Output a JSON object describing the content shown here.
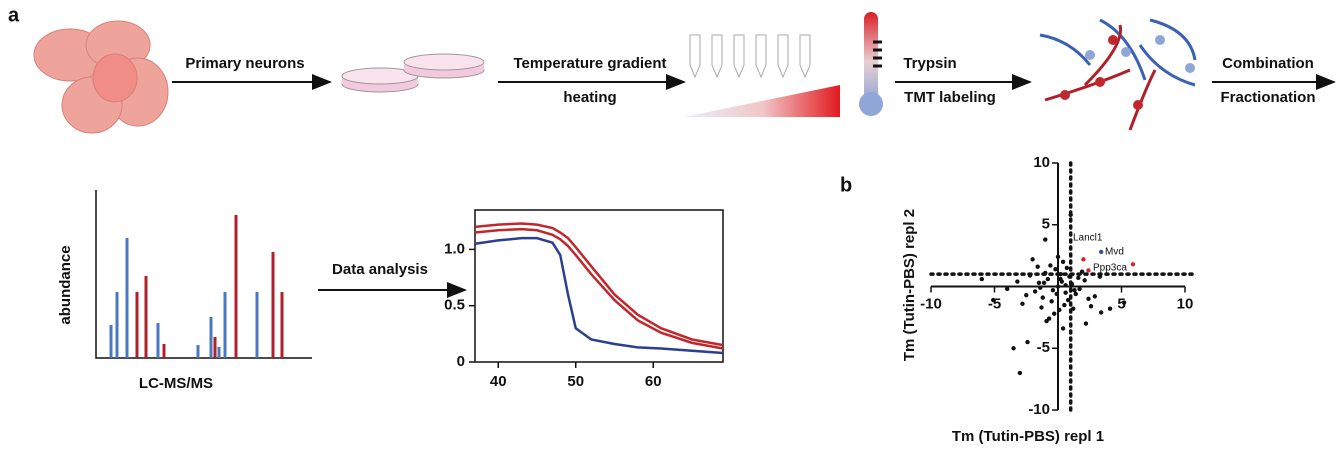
{
  "panels": [
    "a",
    "b"
  ],
  "steps": [
    "Primary neurons",
    "Temperature gradient",
    "heating",
    "Trypsin",
    "TMT labeling",
    "Combination",
    "Fractionation",
    "Data analysis"
  ],
  "spectrum": {
    "y_label": "abundance",
    "x_label": "LC-MS/MS"
  },
  "chart_data": [
    {
      "type": "line",
      "x": [
        37,
        40,
        43,
        45,
        47,
        48,
        49,
        50,
        52,
        55,
        58,
        61,
        65,
        69
      ],
      "series": [
        {
          "color": "#2b3f8f",
          "values": [
            1.05,
            1.08,
            1.1,
            1.1,
            1.06,
            0.95,
            0.6,
            0.3,
            0.2,
            0.16,
            0.13,
            0.12,
            0.1,
            0.08
          ]
        },
        {
          "color": "#c0282d",
          "values": [
            1.2,
            1.22,
            1.23,
            1.22,
            1.19,
            1.15,
            1.1,
            1.02,
            0.85,
            0.6,
            0.42,
            0.3,
            0.2,
            0.15
          ]
        },
        {
          "color": "#c0282d",
          "values": [
            1.15,
            1.17,
            1.18,
            1.17,
            1.13,
            1.09,
            1.03,
            0.95,
            0.78,
            0.55,
            0.37,
            0.26,
            0.17,
            0.12
          ]
        }
      ],
      "xlim": [
        37,
        69
      ],
      "ylim": [
        0,
        1.35
      ],
      "xticks": [
        40,
        50,
        60
      ],
      "yticks": [
        0,
        0.5,
        {
          "value": 1,
          "label": "1.0"
        }
      ]
    },
    {
      "type": "scatter",
      "x_label": "Tm (Tutin-PBS) repl 1",
      "y_label": "Tm (Tutin-PBS) repl 2",
      "xlim": [
        -10,
        10
      ],
      "ylim": [
        -10,
        10
      ],
      "xticks": [
        -10,
        -5,
        5,
        10
      ],
      "yticks": [
        -10,
        -5,
        5,
        10
      ],
      "threshold_lines": {
        "x": 1,
        "y": 1
      },
      "series": [
        {
          "color": "#111111",
          "x": [
            0,
            0.3,
            -0.4,
            0.6,
            -0.8,
            1.1,
            -1.2,
            0.2,
            -0.5,
            0.9,
            -1.5,
            1.4,
            -0.2,
            0.5,
            -1,
            1.7,
            -1.8,
            0.1,
            -0.6,
            0.8,
            -2.2,
            2.1,
            -0.3,
            0.4,
            -1.3,
            1.2,
            -2.5,
            2.4,
            0,
            -0.7,
            0.7,
            -1.6,
            1.6,
            -2.8,
            2.9,
            -3.2,
            3.4,
            -3.5,
            -3,
            -2.4,
            2.2,
            4.1,
            5.2,
            -5.1,
            -6,
            -1,
            1,
            3.3,
            -4,
            0.4,
            -0.9,
            1.9,
            -2,
            2.6,
            -1.4,
            0.6,
            -0.1,
            1.3,
            -1.1,
            0.2
          ],
          "y": [
            0,
            0.4,
            -0.3,
            -0.5,
            0.6,
            0.2,
            -0.9,
            1,
            -1.2,
            0.8,
            0.3,
            -0.6,
            1.4,
            -1.5,
            1.1,
            -0.2,
            -0.4,
            -1.9,
            1.7,
            -1.1,
            0.9,
            0.5,
            -2.2,
            2,
            -1.7,
            -1.8,
            -0.7,
            -1,
            2.4,
            -2.6,
            1.5,
            1.6,
            0.7,
            -1.4,
            -0.8,
            0.4,
            -2.1,
            -5,
            -7,
            -4.5,
            -3,
            -1.8,
            -1.3,
            -1.1,
            0.6,
            3.8,
            5.8,
            0.8,
            -0.2,
            -3.4,
            -2.8,
            1.2,
            2.2,
            -1.6,
            -0.1,
            0.1,
            -0.6,
            -0.3,
            0.3,
            0.6
          ]
        },
        {
          "color": "#d62728",
          "x": [
            2,
            5.9,
            2.4
          ],
          "y": [
            2.2,
            1.8,
            1.3
          ]
        },
        {
          "color": "#3b4fa0",
          "x": [
            3.4
          ],
          "y": [
            2.8
          ]
        }
      ],
      "annotations": [
        "Lancl1",
        "Mvd",
        "Ppp3ca"
      ]
    }
  ]
}
